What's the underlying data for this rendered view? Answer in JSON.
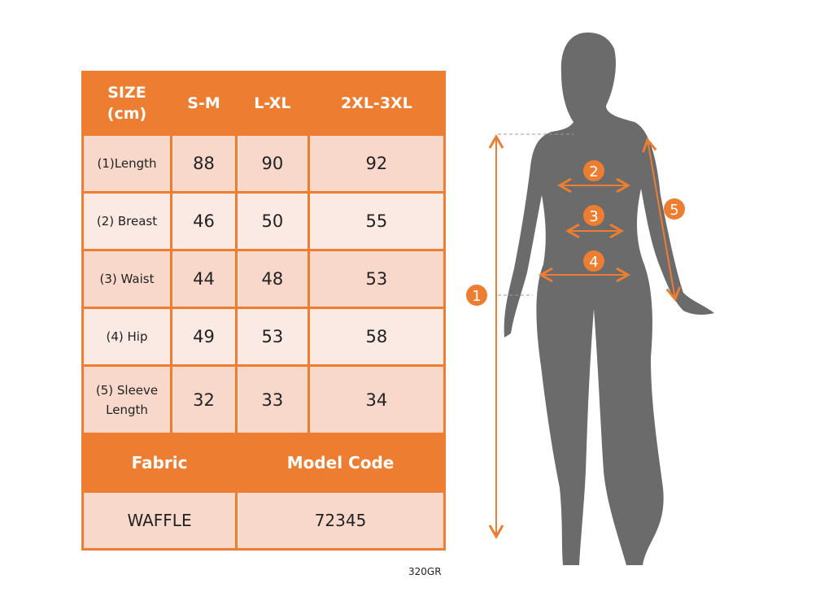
{
  "table": {
    "header": [
      "SIZE\n(cm)",
      "S-M",
      "L-XL",
      "2XL-3XL"
    ],
    "rows": [
      {
        "label": "(1)Length",
        "values": [
          "88",
          "90",
          "92"
        ]
      },
      {
        "label": "(2) Breast",
        "values": [
          "46",
          "50",
          "55"
        ]
      },
      {
        "label": "(3) Waist",
        "values": [
          "44",
          "48",
          "53"
        ]
      },
      {
        "label": "(4) Hip",
        "values": [
          "49",
          "53",
          "58"
        ]
      },
      {
        "label": "(5) Sleeve Length",
        "values": [
          "32",
          "33",
          "34"
        ]
      }
    ],
    "fabric_label": "Fabric",
    "model_code_label": "Model Code",
    "fabric_value": "WAFFLE",
    "model_code_value": "72345"
  },
  "footer_code": "320GR",
  "figure": {
    "markers": [
      "1",
      "2",
      "3",
      "4",
      "5"
    ]
  },
  "colors": {
    "accent": "#ed7d31",
    "row_dark": "#f8d8cb",
    "row_light": "#fbeae3",
    "silhouette": "#6b6b6b"
  }
}
